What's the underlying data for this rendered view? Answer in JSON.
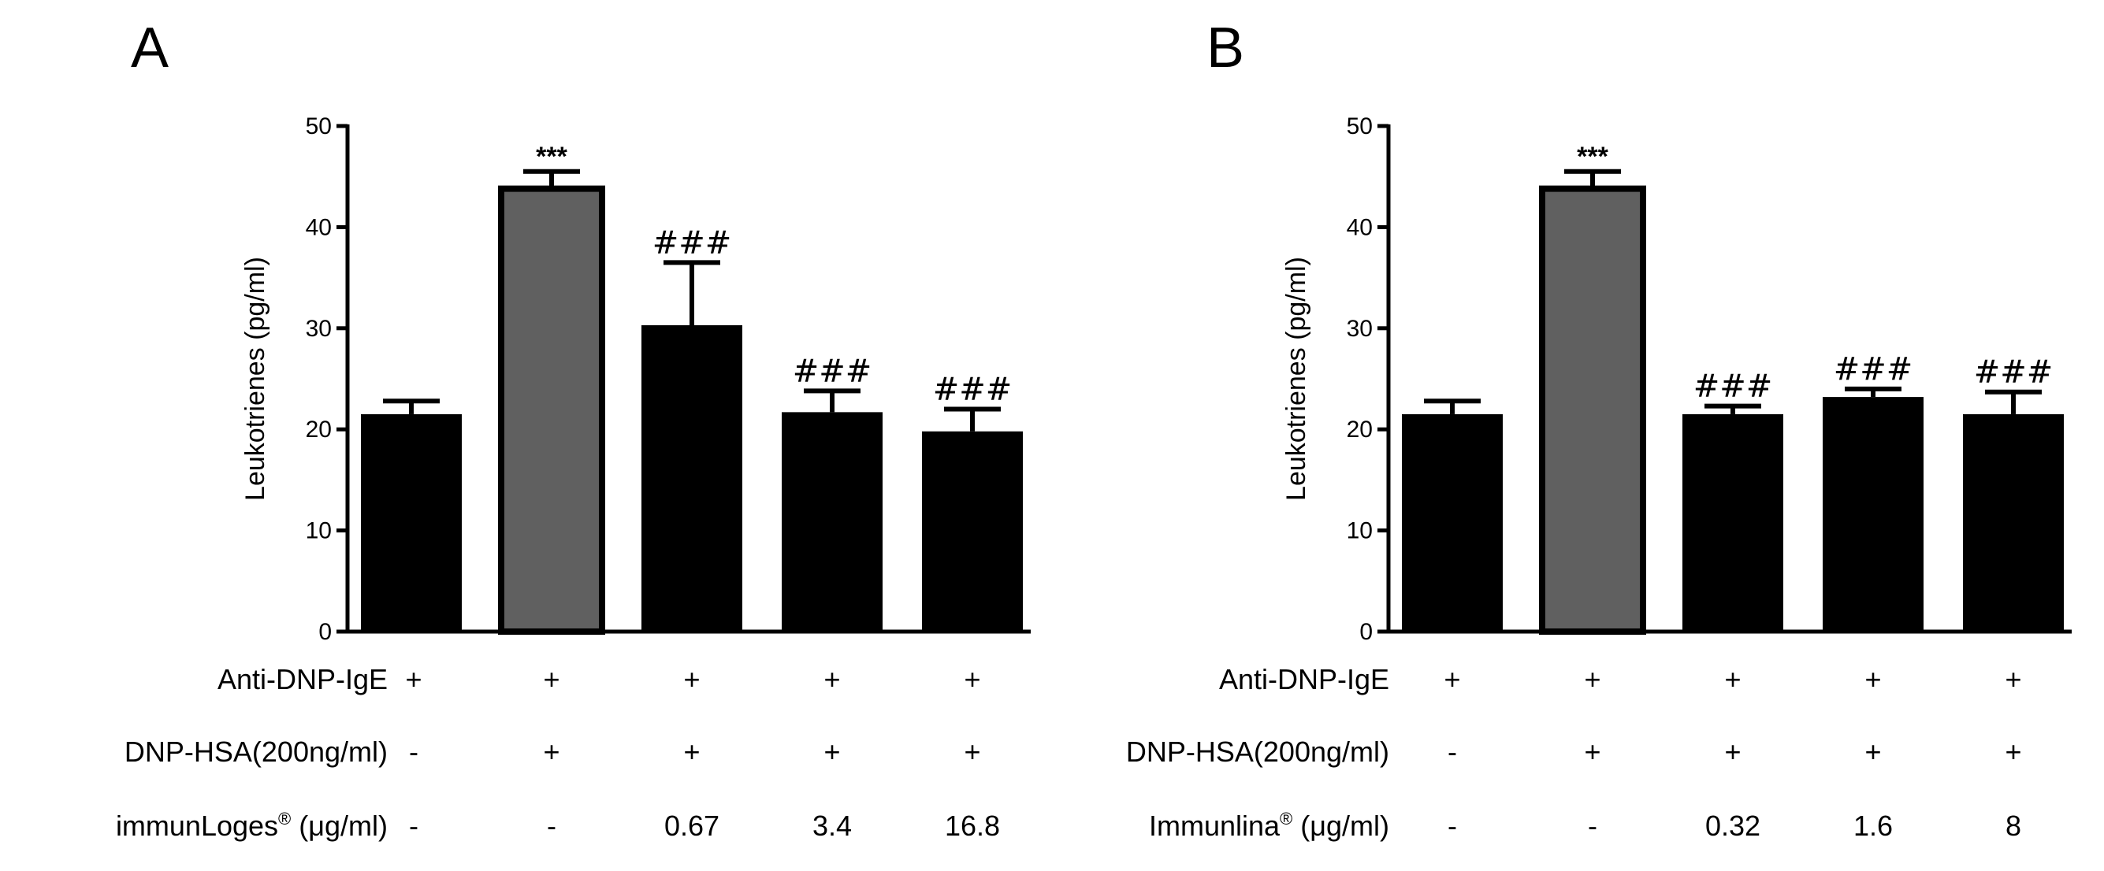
{
  "chart_data": [
    {
      "type": "bar",
      "panel": "A",
      "title": "",
      "ylabel": "Leukotrienes (pg/ml)",
      "xlabel": "",
      "ylim": [
        0,
        50
      ],
      "yticks": [
        "0",
        "10",
        "20",
        "30",
        "40",
        "50"
      ],
      "values": [
        21.5,
        43.8,
        30.3,
        21.7,
        19.8
      ],
      "errors": [
        1.3,
        1.7,
        6.2,
        2.1,
        2.2
      ],
      "bar_colors": [
        "#000000",
        "#606060",
        "#000000",
        "#000000",
        "#000000"
      ],
      "annotations": [
        "",
        "***",
        "###",
        "###",
        "###"
      ],
      "conditions": [
        {
          "label": "Anti-DNP-IgE",
          "sup": "",
          "unit": "",
          "values": [
            "+",
            "+",
            "+",
            "+",
            "+"
          ]
        },
        {
          "label": "DNP-HSA(200ng/ml)",
          "sup": "",
          "unit": "",
          "values": [
            "-",
            "+",
            "+",
            "+",
            "+"
          ]
        },
        {
          "label": "immunLoges",
          "sup": "®",
          "unit": "(μg/ml)",
          "values": [
            "-",
            "-",
            "0.67",
            "3.4",
            "16.8"
          ]
        }
      ]
    },
    {
      "type": "bar",
      "panel": "B",
      "title": "",
      "ylabel": "Leukotrienes (pg/ml)",
      "xlabel": "",
      "ylim": [
        0,
        50
      ],
      "yticks": [
        "0",
        "10",
        "20",
        "30",
        "40",
        "50"
      ],
      "values": [
        21.5,
        43.8,
        21.5,
        23.2,
        21.5
      ],
      "errors": [
        1.3,
        1.7,
        0.8,
        0.8,
        2.2
      ],
      "bar_colors": [
        "#000000",
        "#606060",
        "#000000",
        "#000000",
        "#000000"
      ],
      "annotations": [
        "",
        "***",
        "###",
        "###",
        "###"
      ],
      "conditions": [
        {
          "label": "Anti-DNP-IgE",
          "sup": "",
          "unit": "",
          "values": [
            "+",
            "+",
            "+",
            "+",
            "+"
          ]
        },
        {
          "label": "DNP-HSA(200ng/ml)",
          "sup": "",
          "unit": "",
          "values": [
            "-",
            "+",
            "+",
            "+",
            "+"
          ]
        },
        {
          "label": "Immunlina",
          "sup": "®",
          "unit": "(μg/ml)",
          "values": [
            "-",
            "-",
            "0.32",
            "1.6",
            "8"
          ]
        }
      ]
    }
  ]
}
